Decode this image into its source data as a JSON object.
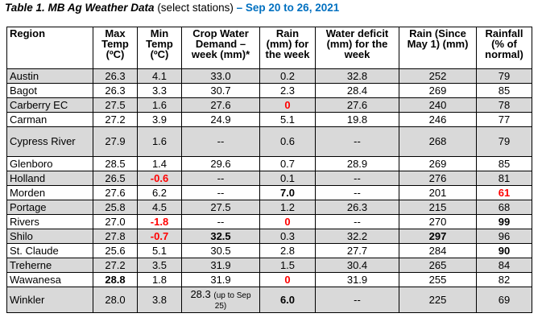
{
  "title": {
    "main": "Table 1. MB Ag Weather Data",
    "sub": "(select stations)",
    "dash": "–",
    "range": "Sep 20 to 26, 2021"
  },
  "headers": [
    [
      "Region"
    ],
    [
      "Max",
      "Temp",
      "(ºC)"
    ],
    [
      "Min",
      "Temp",
      "(ºC)"
    ],
    [
      "Crop Water",
      "Demand –",
      "week (mm)*"
    ],
    [
      "Rain",
      "(mm) for",
      "the week"
    ],
    [
      "Water deficit",
      "(mm) for the",
      "week"
    ],
    [
      "Rain (Since",
      "May 1) (mm)"
    ],
    [
      "Rainfall",
      "(% of",
      "normal)"
    ]
  ],
  "rows": [
    {
      "cells": [
        "Austin",
        "26.3",
        "4.1",
        "33.0",
        "0.2",
        "32.8",
        "252",
        "79"
      ],
      "red": [],
      "bold": [],
      "shade": true,
      "tall": false
    },
    {
      "cells": [
        "Bagot",
        "26.3",
        "3.3",
        "30.7",
        "2.3",
        "28.4",
        "269",
        "85"
      ],
      "red": [],
      "bold": [],
      "shade": false,
      "tall": false
    },
    {
      "cells": [
        "Carberry EC",
        "27.5",
        "1.6",
        "27.6",
        "0",
        "27.6",
        "240",
        "78"
      ],
      "red": [
        4
      ],
      "bold": [],
      "shade": true,
      "tall": false
    },
    {
      "cells": [
        "Carman",
        "27.2",
        "3.9",
        "24.9",
        "5.1",
        "19.8",
        "246",
        "77"
      ],
      "red": [],
      "bold": [],
      "shade": false,
      "tall": false
    },
    {
      "cells": [
        "Cypress River",
        "27.9",
        "1.6",
        "--",
        "0.6",
        "--",
        "268",
        "79"
      ],
      "red": [],
      "bold": [],
      "shade": true,
      "tall": true
    },
    {
      "cells": [
        "Glenboro",
        "28.5",
        "1.4",
        "29.6",
        "0.7",
        "28.9",
        "269",
        "85"
      ],
      "red": [],
      "bold": [],
      "shade": false,
      "tall": false
    },
    {
      "cells": [
        "Holland",
        "26.5",
        "-0.6",
        "--",
        "0.1",
        "--",
        "276",
        "81"
      ],
      "red": [
        2
      ],
      "bold": [],
      "shade": true,
      "tall": false
    },
    {
      "cells": [
        "Morden",
        "27.6",
        "6.2",
        "--",
        "7.0",
        "--",
        "201",
        "61"
      ],
      "red": [
        7
      ],
      "bold": [
        4
      ],
      "shade": false,
      "tall": false
    },
    {
      "cells": [
        "Portage",
        "25.8",
        "4.5",
        "27.5",
        "1.2",
        "26.3",
        "215",
        "68"
      ],
      "red": [],
      "bold": [],
      "shade": true,
      "tall": false
    },
    {
      "cells": [
        "Rivers",
        "27.0",
        "-1.8",
        "--",
        "0",
        "--",
        "270",
        "99"
      ],
      "red": [
        2,
        4
      ],
      "bold": [
        7
      ],
      "shade": false,
      "tall": false
    },
    {
      "cells": [
        "Shilo",
        "27.8",
        "-0.7",
        "32.5",
        "0.3",
        "32.2",
        "297",
        "96"
      ],
      "red": [
        2
      ],
      "bold": [
        3,
        6
      ],
      "shade": true,
      "tall": false
    },
    {
      "cells": [
        "St. Claude",
        "25.6",
        "5.1",
        "30.5",
        "2.8",
        "27.7",
        "284",
        "90"
      ],
      "red": [],
      "bold": [
        7
      ],
      "shade": false,
      "tall": false
    },
    {
      "cells": [
        "Treherne",
        "27.2",
        "3.5",
        "31.9",
        "1.5",
        "30.4",
        "265",
        "84"
      ],
      "red": [],
      "bold": [],
      "shade": true,
      "tall": false
    },
    {
      "cells": [
        "Wawanesa",
        "28.8",
        "1.8",
        "31.9",
        "0",
        "31.9",
        "255",
        "82"
      ],
      "red": [
        4
      ],
      "bold": [
        1
      ],
      "shade": false,
      "tall": false
    },
    {
      "cells": [
        "Winkler",
        "28.0",
        "3.8",
        "28.3",
        "6.0",
        "--",
        "225",
        "69"
      ],
      "red": [],
      "bold": [
        4
      ],
      "shade": true,
      "tall": false,
      "note": {
        "col": 3,
        "text": "(up to Sep 25)"
      }
    }
  ],
  "colors": {
    "accent_blue": "#0070c0",
    "alert_red": "#ff0000",
    "row_shade": "#d9d9d9"
  }
}
